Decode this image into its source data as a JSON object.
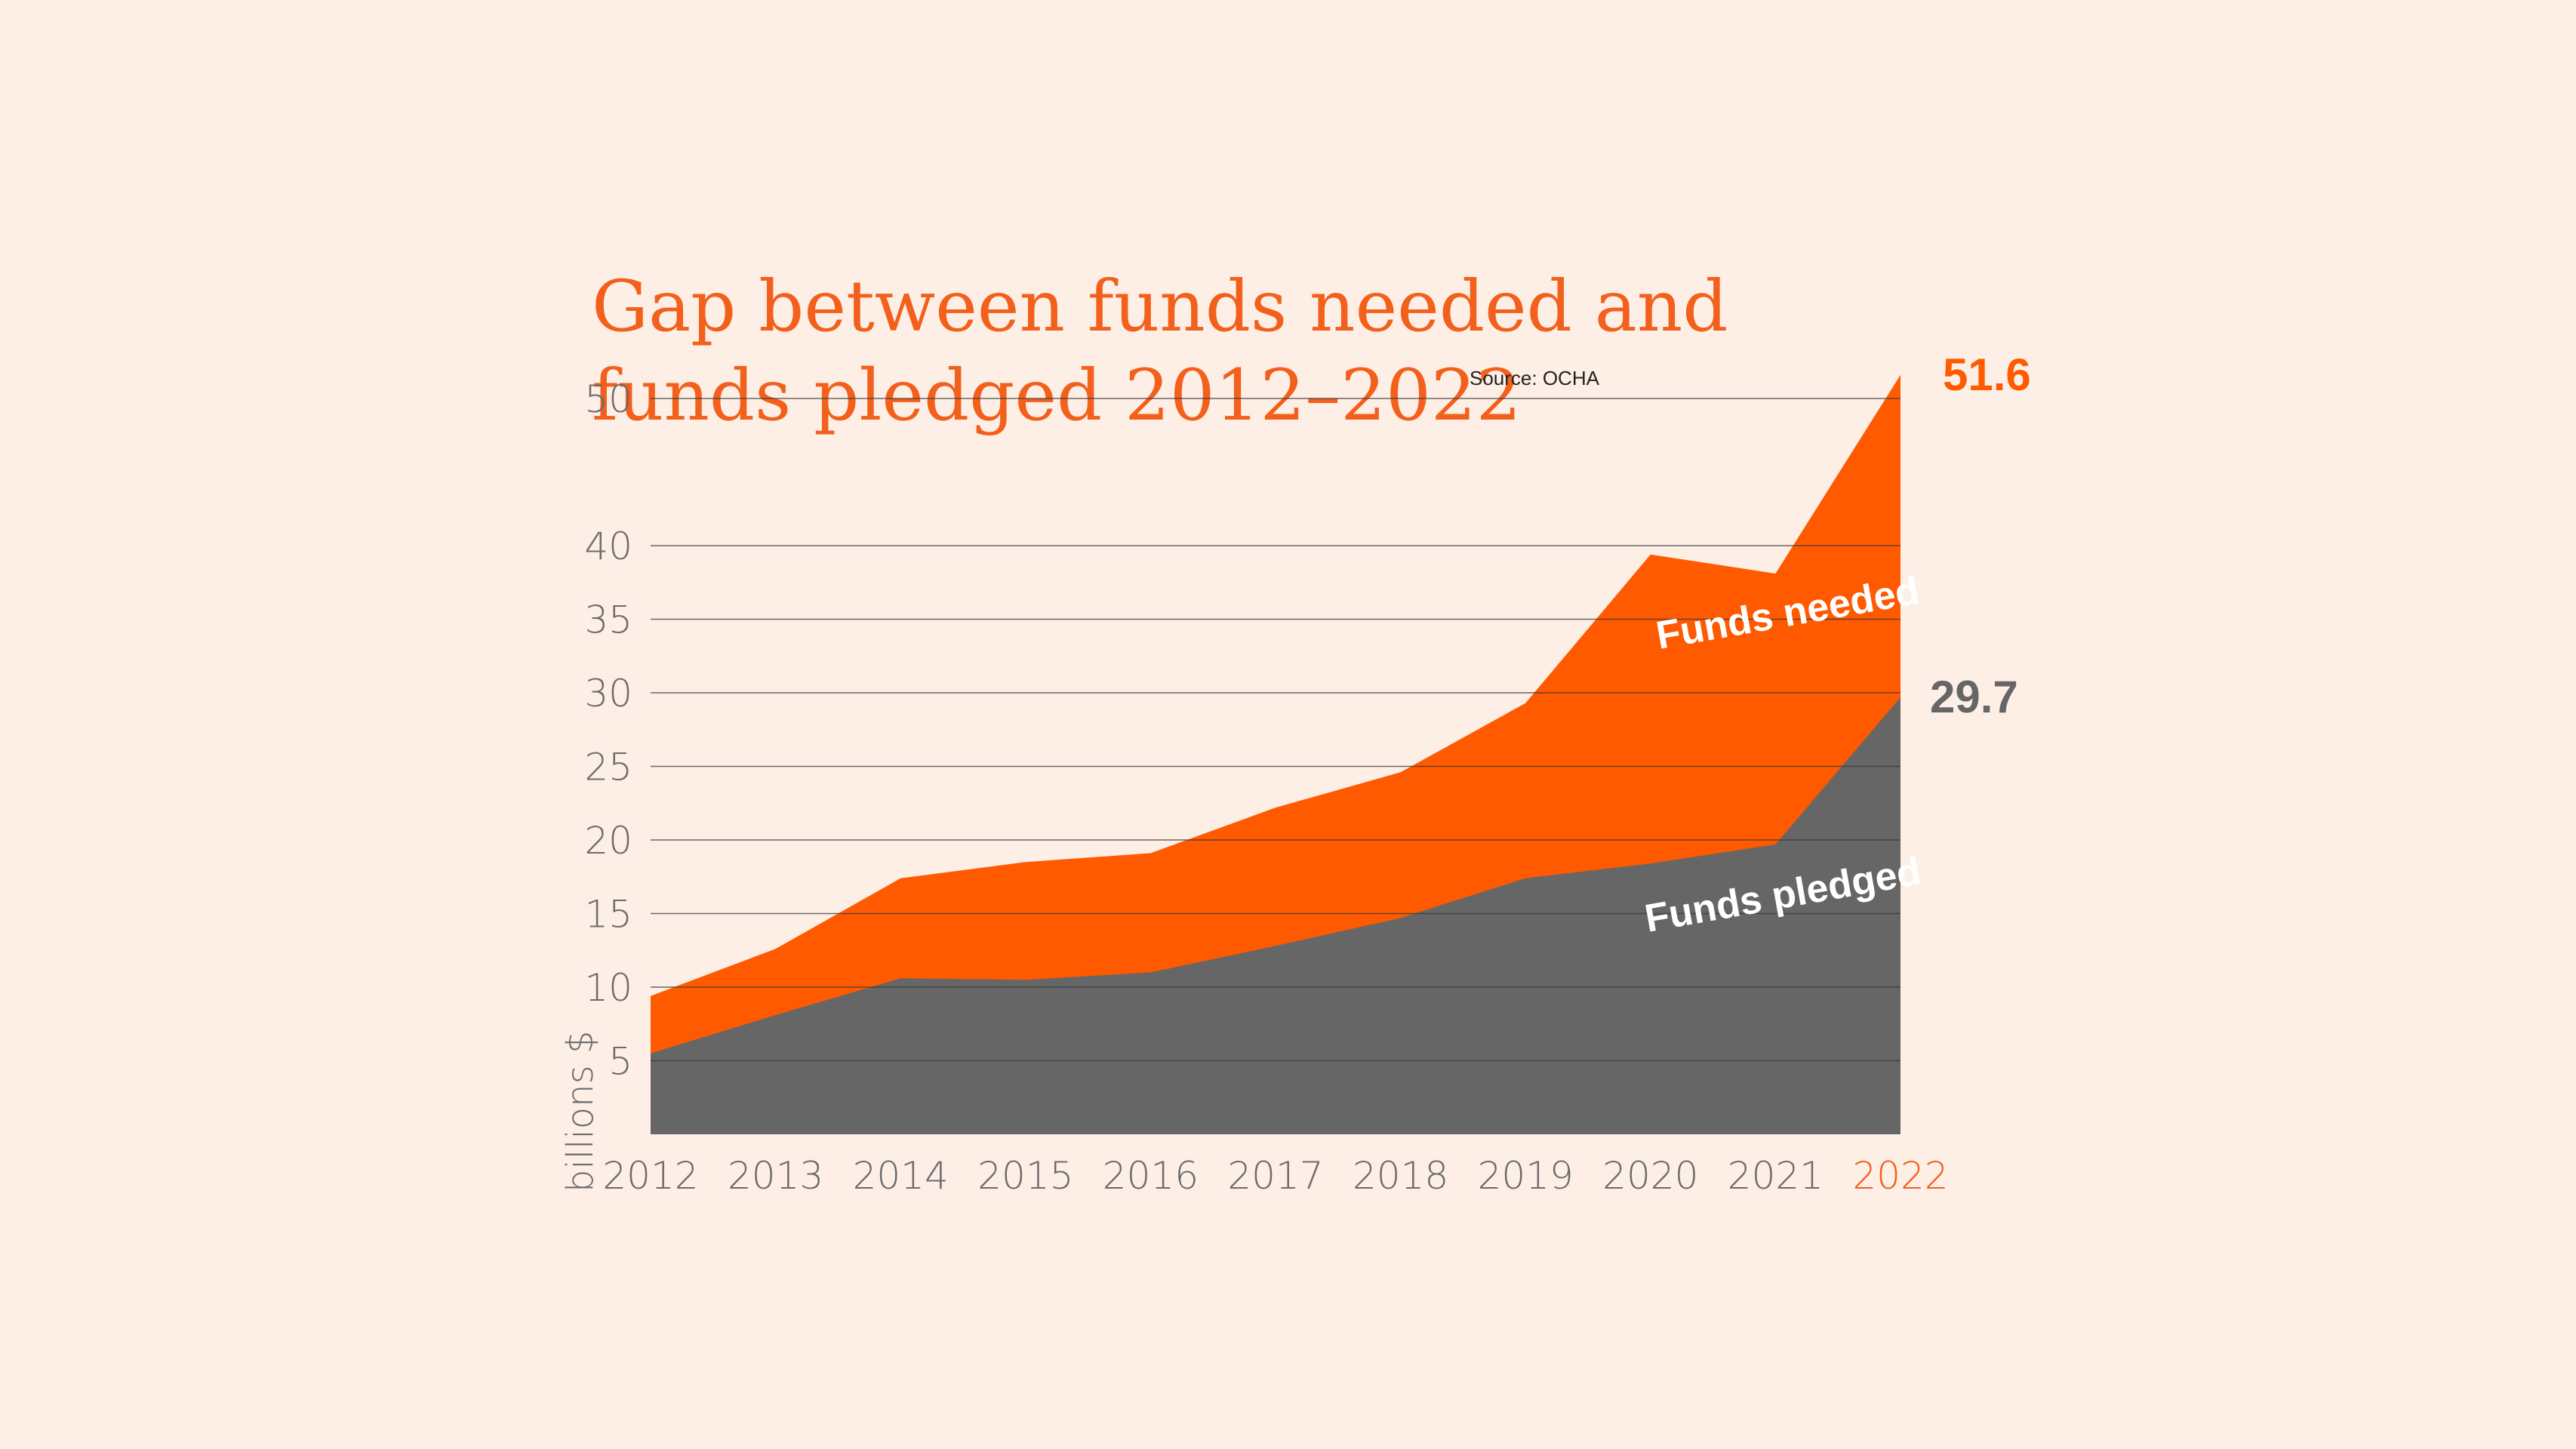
{
  "chart_data": {
    "type": "area",
    "title_line1": "Gap between funds needed and",
    "title_line2": "funds pledged 2012–2022",
    "source": "Source: OCHA",
    "ylabel": "billions $",
    "x": [
      "2012",
      "2013",
      "2014",
      "2015",
      "2016",
      "2017",
      "2018",
      "2019",
      "2020",
      "2021",
      "2022"
    ],
    "yticks": [
      "5",
      "10",
      "15",
      "20",
      "25",
      "30",
      "35",
      "40",
      "50"
    ],
    "series": [
      {
        "name": "Funds needed",
        "values": [
          9.4,
          12.6,
          17.4,
          18.5,
          19.1,
          22.2,
          24.6,
          29.3,
          39.4,
          38.1,
          51.6
        ]
      },
      {
        "name": "Funds pledged",
        "values": [
          5.5,
          8.1,
          10.6,
          10.5,
          11.0,
          12.8,
          14.7,
          17.4,
          18.4,
          19.7,
          29.7
        ]
      }
    ],
    "end_labels": {
      "needed": "51.6",
      "pledged": "29.7"
    },
    "colors": {
      "needed": "#ff5a00",
      "pledged": "#666666",
      "title": "#f2601b",
      "axis_text": "#6b6b6b",
      "highlight_year": "#f2601b",
      "background": "#fdeee6"
    }
  }
}
